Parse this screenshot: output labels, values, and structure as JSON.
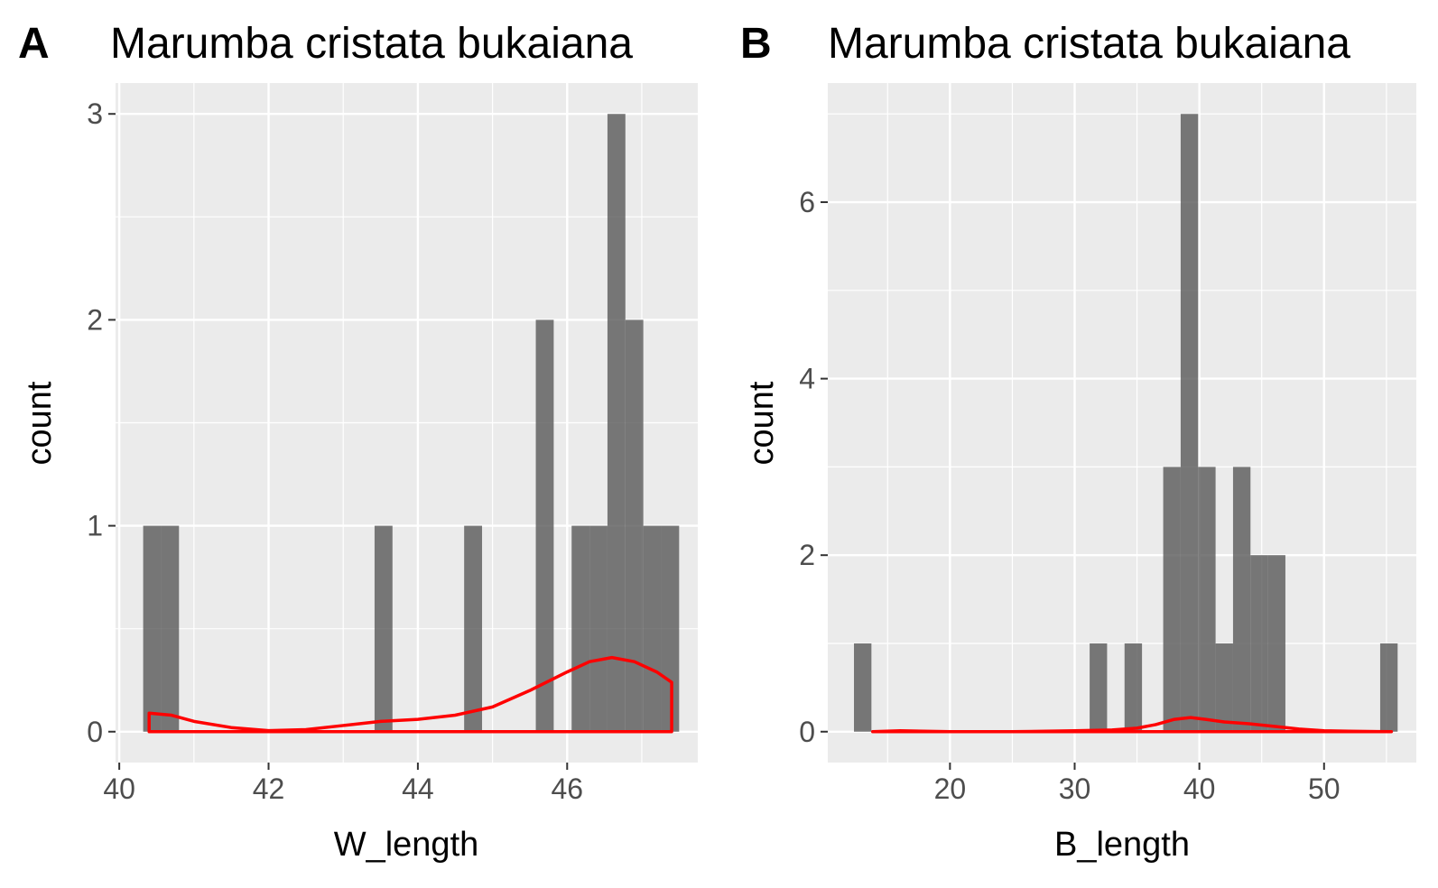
{
  "chart_data": [
    {
      "type": "bar",
      "panel_label": "A",
      "title": "Marumba cristata bukaiana",
      "xlabel": "W_length",
      "ylabel": "count",
      "xlim": [
        39.95,
        47.75
      ],
      "ylim": [
        -0.15,
        3.15
      ],
      "xticks": [
        40,
        42,
        44,
        46
      ],
      "yticks": [
        0,
        1,
        2,
        3
      ],
      "bar_color": "#595959",
      "bars": [
        {
          "x0": 40.32,
          "x1": 40.56,
          "count": 1
        },
        {
          "x0": 40.56,
          "x1": 40.8,
          "count": 1
        },
        {
          "x0": 43.42,
          "x1": 43.66,
          "count": 1
        },
        {
          "x0": 44.62,
          "x1": 44.86,
          "count": 1
        },
        {
          "x0": 45.58,
          "x1": 45.82,
          "count": 2
        },
        {
          "x0": 46.06,
          "x1": 46.3,
          "count": 1
        },
        {
          "x0": 46.3,
          "x1": 46.54,
          "count": 1
        },
        {
          "x0": 46.54,
          "x1": 46.78,
          "count": 3
        },
        {
          "x0": 46.78,
          "x1": 47.02,
          "count": 2
        },
        {
          "x0": 47.02,
          "x1": 47.26,
          "count": 1
        },
        {
          "x0": 47.26,
          "x1": 47.5,
          "count": 1
        }
      ],
      "density_color": "#ff0000",
      "density": {
        "x": [
          40.4,
          40.7,
          41.0,
          41.5,
          42.0,
          42.5,
          43.0,
          43.5,
          44.0,
          44.5,
          45.0,
          45.5,
          46.0,
          46.3,
          46.6,
          46.9,
          47.2,
          47.4
        ],
        "y": [
          0.09,
          0.08,
          0.05,
          0.02,
          0.005,
          0.01,
          0.03,
          0.05,
          0.06,
          0.08,
          0.12,
          0.2,
          0.29,
          0.34,
          0.36,
          0.34,
          0.29,
          0.24
        ]
      }
    },
    {
      "type": "bar",
      "panel_label": "B",
      "title": "Marumba cristata bukaiana",
      "xlabel": "B_length",
      "ylabel": "count",
      "xlim": [
        10.2,
        57.4
      ],
      "ylim": [
        -0.35,
        7.35
      ],
      "xticks": [
        20,
        30,
        40,
        50
      ],
      "yticks": [
        0,
        2,
        4,
        6
      ],
      "bar_color": "#595959",
      "bars": [
        {
          "x0": 12.3,
          "x1": 13.7,
          "count": 1
        },
        {
          "x0": 31.2,
          "x1": 32.6,
          "count": 1
        },
        {
          "x0": 34.0,
          "x1": 35.4,
          "count": 1
        },
        {
          "x0": 37.1,
          "x1": 38.5,
          "count": 3
        },
        {
          "x0": 38.5,
          "x1": 39.9,
          "count": 7
        },
        {
          "x0": 39.9,
          "x1": 41.3,
          "count": 3
        },
        {
          "x0": 41.3,
          "x1": 42.7,
          "count": 1
        },
        {
          "x0": 42.7,
          "x1": 44.1,
          "count": 3
        },
        {
          "x0": 44.1,
          "x1": 45.5,
          "count": 2
        },
        {
          "x0": 45.5,
          "x1": 46.9,
          "count": 2
        },
        {
          "x0": 54.5,
          "x1": 55.9,
          "count": 1
        }
      ],
      "density_color": "#ff0000",
      "density": {
        "x": [
          13.8,
          16,
          20,
          25,
          30,
          33,
          35,
          36.5,
          38,
          39.3,
          40.5,
          42,
          44,
          46,
          48,
          50,
          52,
          55.4
        ],
        "y": [
          0.0,
          0.01,
          0.0,
          0.0,
          0.01,
          0.02,
          0.04,
          0.08,
          0.14,
          0.16,
          0.14,
          0.11,
          0.09,
          0.06,
          0.03,
          0.01,
          0.005,
          0.0
        ]
      }
    }
  ]
}
